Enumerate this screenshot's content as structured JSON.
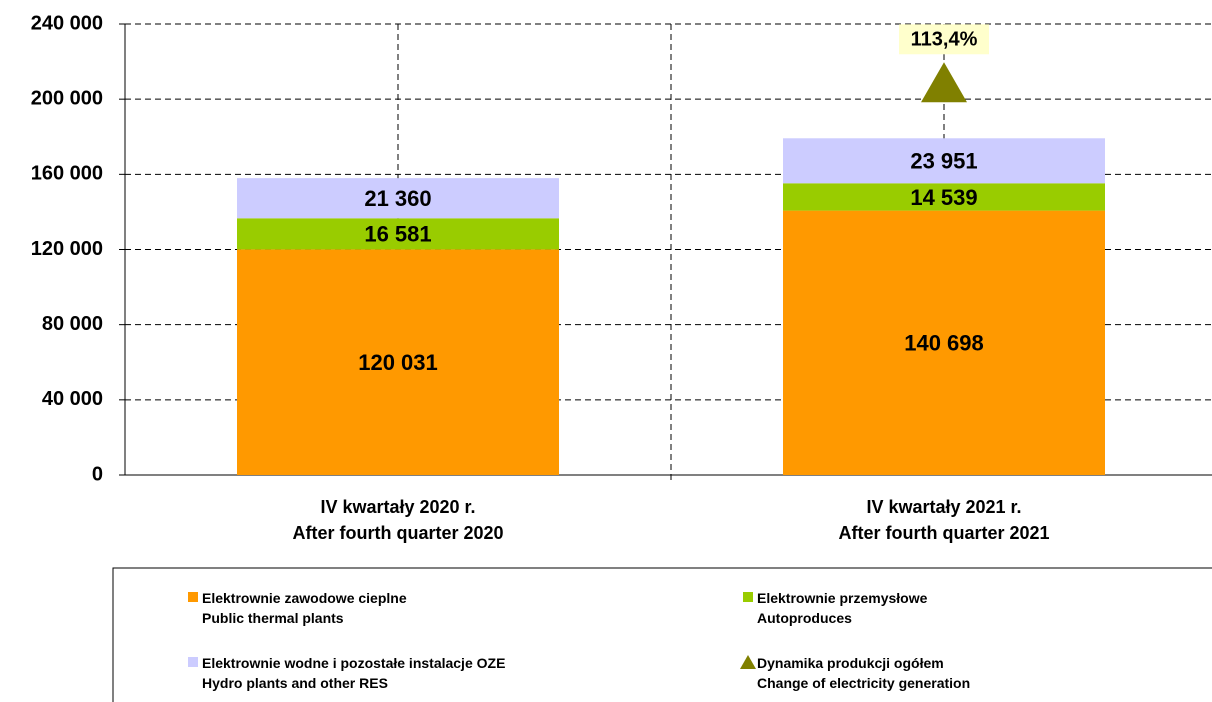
{
  "chart_data": {
    "type": "stacked_bar",
    "categories": [
      "IV kwartały 2020 r.\nAfter fourth quarter 2020",
      "IV kwartały 2021 r.\nAfter fourth quarter 2021"
    ],
    "series": [
      {
        "name": "Elektrownie zawodowe cieplne\nPublic thermal plants",
        "color": "#ff9900",
        "values": [
          120031,
          140698
        ],
        "value_labels": [
          "120 031",
          "140 698"
        ]
      },
      {
        "name": "Elektrownie przemysłowe\nAutoproduces",
        "color": "#99cc00",
        "values": [
          16581,
          14539
        ],
        "value_labels": [
          "16 581",
          "14 539"
        ]
      },
      {
        "name": "Elektrownie wodne i pozostałe instalacje OZE\nHydro plants and other RES",
        "color": "#ccccff",
        "values": [
          21360,
          23951
        ],
        "value_labels": [
          "21 360",
          "23 951"
        ]
      },
      {
        "name": "Dynamika produkcji ogółem\nChange of electricity generation",
        "color": "#808000",
        "marker": "triangle",
        "values": [
          null,
          113.4
        ],
        "value_labels": [
          null,
          "113,4%"
        ]
      }
    ],
    "ylim": [
      0,
      240000
    ],
    "yticks": [
      0,
      {
        "value": 40000,
        "label": "40 000"
      },
      {
        "value": 80000,
        "label": "80 000"
      },
      {
        "value": 120000,
        "label": "120 000"
      },
      {
        "value": 160000,
        "label": "160 000"
      },
      {
        "value": 200000,
        "label": "200 000"
      },
      {
        "value": 240000,
        "label": "240 000"
      }
    ],
    "grid": true
  }
}
